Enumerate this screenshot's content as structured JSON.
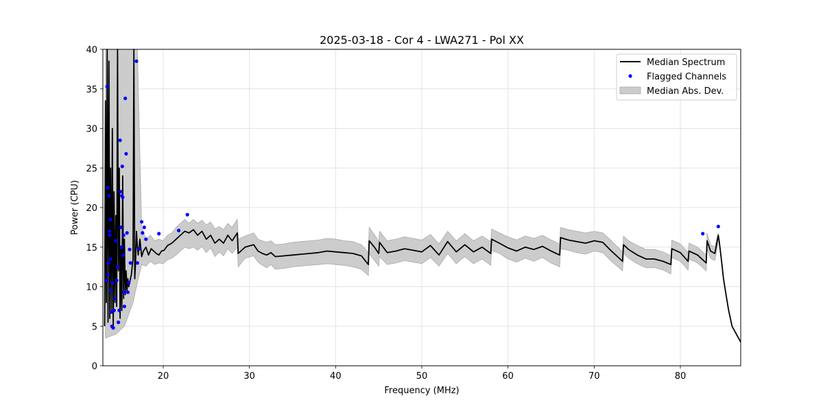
{
  "chart_data": {
    "type": "line",
    "title": "2025-03-18 - Cor 4 - LWA271 - Pol XX",
    "xlabel": "Frequency (MHz)",
    "ylabel": "Power (CPU)",
    "xlim": [
      13.0,
      87.0
    ],
    "ylim": [
      0,
      40
    ],
    "x_ticks": [
      20,
      30,
      40,
      50,
      60,
      70,
      80
    ],
    "y_ticks": [
      0,
      5,
      10,
      15,
      20,
      25,
      30,
      35,
      40
    ],
    "x_tick_labels": [
      "20",
      "30",
      "40",
      "50",
      "60",
      "70",
      "80"
    ],
    "y_tick_labels": [
      "0",
      "5",
      "10",
      "15",
      "20",
      "25",
      "30",
      "35",
      "40"
    ],
    "grid": true,
    "legend_position": "top-right",
    "legend": [
      {
        "label": "Median Spectrum",
        "kind": "line",
        "color": "#000000"
      },
      {
        "label": "Flagged Channels",
        "kind": "marker",
        "color": "#0000ff"
      },
      {
        "label": "Median Abs. Dev.",
        "kind": "band",
        "color": "#cccccc"
      }
    ],
    "series": [
      {
        "name": "Median Spectrum",
        "color": "#000000",
        "x": [
          13.2,
          13.3,
          13.4,
          13.5,
          13.6,
          13.7,
          13.8,
          13.9,
          14.0,
          14.1,
          14.2,
          14.3,
          14.4,
          14.5,
          14.6,
          14.7,
          14.8,
          14.9,
          15.0,
          15.1,
          15.2,
          15.3,
          15.4,
          15.5,
          15.6,
          15.7,
          15.8,
          15.9,
          16.0,
          16.1,
          16.2,
          16.3,
          16.4,
          16.5,
          16.6,
          16.7,
          16.8,
          16.9,
          17.0,
          17.1,
          17.3,
          17.5,
          17.7,
          18.0,
          18.3,
          18.6,
          18.9,
          19.2,
          19.5,
          19.8,
          20.1,
          20.5,
          21.0,
          21.5,
          22.0,
          22.5,
          23.0,
          23.5,
          24.0,
          24.5,
          25.0,
          25.5,
          26.0,
          26.5,
          27.0,
          27.5,
          28.0,
          28.6,
          28.7,
          29.5,
          30.5,
          31.0,
          31.5,
          32.0,
          32.5,
          33.0,
          34.0,
          35.0,
          36.0,
          37.0,
          38.0,
          39.0,
          40.0,
          41.0,
          42.0,
          43.0,
          43.8,
          43.9,
          44.5,
          45.0,
          45.1,
          46.0,
          47.0,
          48.0,
          49.0,
          50.0,
          51.0,
          52.0,
          53.0,
          54.0,
          55.0,
          56.0,
          57.0,
          58.0,
          58.1,
          59.0,
          60.0,
          61.0,
          62.0,
          63.0,
          64.0,
          65.0,
          66.0,
          66.1,
          67.0,
          68.0,
          69.0,
          70.0,
          71.0,
          72.0,
          73.3,
          73.4,
          74.0,
          75.0,
          76.0,
          77.0,
          78.0,
          78.9,
          79.0,
          80.0,
          80.9,
          81.0,
          82.0,
          82.5,
          83.0,
          83.1,
          83.5,
          84.0,
          84.4,
          84.5,
          84.8,
          85.0,
          85.3,
          85.6,
          86.0,
          86.5,
          87.0
        ],
        "y": [
          5.0,
          33.5,
          8.0,
          40.0,
          5.5,
          38.5,
          6.0,
          25.0,
          7.0,
          30.0,
          4.8,
          22.0,
          8.0,
          19.0,
          7.5,
          40.0,
          12.0,
          25.0,
          6.0,
          15.0,
          7.0,
          24.0,
          8.5,
          16.0,
          9.0,
          12.0,
          9.5,
          11.0,
          10.0,
          10.5,
          11.0,
          11.5,
          12.5,
          13.5,
          40.0,
          11.0,
          13.5,
          17.0,
          15.0,
          14.0,
          16.0,
          13.8,
          14.5,
          15.0,
          14.0,
          14.8,
          14.5,
          14.2,
          14.0,
          14.5,
          14.6,
          15.2,
          15.5,
          16.0,
          16.5,
          17.0,
          16.8,
          17.2,
          16.5,
          17.0,
          16.0,
          16.5,
          15.5,
          16.0,
          15.5,
          16.5,
          15.8,
          16.8,
          14.2,
          15.0,
          15.3,
          14.5,
          14.2,
          14.0,
          14.3,
          13.8,
          13.9,
          14.0,
          14.1,
          14.2,
          14.3,
          14.5,
          14.4,
          14.3,
          14.2,
          13.9,
          12.8,
          15.8,
          15.0,
          14.2,
          15.6,
          14.3,
          14.5,
          14.8,
          14.6,
          14.4,
          15.2,
          14.0,
          15.7,
          14.4,
          15.3,
          14.4,
          15.0,
          14.2,
          16.0,
          15.5,
          14.9,
          14.5,
          15.0,
          14.7,
          15.1,
          14.5,
          14.0,
          16.2,
          15.9,
          15.7,
          15.5,
          15.8,
          15.6,
          14.5,
          13.2,
          15.3,
          14.7,
          14.0,
          13.5,
          13.5,
          13.2,
          12.8,
          14.8,
          14.3,
          13.2,
          14.5,
          14.0,
          13.5,
          13.0,
          15.8,
          14.5,
          14.2,
          16.5,
          15.8,
          13.0,
          11.0,
          9.0,
          7.0,
          5.0,
          4.0,
          3.0
        ]
      },
      {
        "name": "Median Abs. Dev.",
        "color": "#cccccc",
        "x": [
          13.3,
          14.5,
          15.5,
          16.5,
          17.0,
          17.5,
          18.0,
          18.5,
          19.0,
          19.5,
          20.0,
          20.5,
          21.0,
          21.5,
          22.0,
          22.5,
          23.0,
          23.5,
          24.0,
          24.5,
          25.0,
          25.5,
          26.0,
          26.5,
          27.0,
          27.5,
          28.0,
          28.6,
          28.7,
          29.5,
          30.5,
          31.0,
          31.5,
          32.0,
          32.5,
          33.0,
          34.0,
          35.0,
          36.0,
          37.0,
          38.0,
          39.0,
          40.0,
          41.0,
          42.0,
          43.0,
          43.8,
          43.9,
          44.5,
          45.0,
          45.1,
          46.0,
          47.0,
          48.0,
          49.0,
          50.0,
          51.0,
          52.0,
          53.0,
          54.0,
          55.0,
          56.0,
          57.0,
          58.0,
          58.1,
          59.0,
          60.0,
          61.0,
          62.0,
          63.0,
          64.0,
          65.0,
          66.0,
          66.1,
          67.0,
          68.0,
          69.0,
          70.0,
          71.0,
          72.0,
          73.3,
          73.4,
          74.0,
          75.0,
          76.0,
          77.0,
          78.0,
          78.9,
          79.0,
          80.0,
          80.9,
          81.0,
          82.0,
          82.5,
          83.0,
          83.1,
          83.5,
          84.0,
          84.4
        ],
        "upper": [
          40.0,
          40.0,
          40.0,
          40.0,
          40.0,
          17.5,
          16.0,
          16.5,
          15.8,
          16.0,
          15.8,
          16.5,
          16.8,
          17.5,
          18.0,
          18.5,
          18.0,
          18.5,
          18.0,
          18.4,
          17.8,
          18.2,
          17.3,
          17.6,
          17.2,
          18.0,
          17.5,
          18.5,
          16.0,
          16.4,
          16.8,
          16.0,
          15.8,
          15.6,
          15.8,
          15.3,
          15.4,
          15.6,
          15.7,
          15.8,
          15.9,
          16.1,
          16.0,
          15.8,
          15.7,
          15.3,
          14.3,
          17.5,
          16.6,
          15.7,
          17.0,
          15.8,
          16.0,
          16.3,
          16.1,
          15.9,
          16.6,
          15.4,
          17.0,
          15.8,
          16.7,
          15.8,
          16.4,
          15.7,
          17.3,
          16.8,
          16.3,
          15.9,
          16.4,
          16.1,
          16.5,
          15.9,
          15.4,
          17.5,
          17.2,
          17.0,
          16.8,
          17.0,
          16.8,
          15.8,
          14.4,
          16.4,
          15.8,
          15.2,
          14.7,
          14.7,
          14.4,
          13.9,
          15.9,
          15.4,
          14.3,
          15.5,
          15.0,
          14.5,
          14.0,
          16.8,
          15.3,
          15.0,
          16.8
        ],
        "lower": [
          3.5,
          4.0,
          5.0,
          8.0,
          10.5,
          12.8,
          12.6,
          13.2,
          12.8,
          13.0,
          12.9,
          13.4,
          13.6,
          14.0,
          14.5,
          15.0,
          14.8,
          15.0,
          14.6,
          15.1,
          14.3,
          14.9,
          13.8,
          14.4,
          13.9,
          14.8,
          14.2,
          15.0,
          12.5,
          13.6,
          13.9,
          13.1,
          12.7,
          12.4,
          12.8,
          12.2,
          12.3,
          12.5,
          12.6,
          12.7,
          12.8,
          12.9,
          12.8,
          12.7,
          12.5,
          12.2,
          11.4,
          14.2,
          13.3,
          12.6,
          13.8,
          12.8,
          13.0,
          13.3,
          13.1,
          12.9,
          13.7,
          12.6,
          14.2,
          12.9,
          13.8,
          12.9,
          13.5,
          12.7,
          14.6,
          14.2,
          13.5,
          13.1,
          13.6,
          13.2,
          13.7,
          13.0,
          12.5,
          14.8,
          14.6,
          14.3,
          14.1,
          14.5,
          14.3,
          13.2,
          12.0,
          14.2,
          13.6,
          12.9,
          12.4,
          12.4,
          12.1,
          11.6,
          13.7,
          13.2,
          12.1,
          13.5,
          13.0,
          12.5,
          12.0,
          14.8,
          13.6,
          13.3,
          15.6
        ]
      },
      {
        "name": "Flagged Channels",
        "color": "#0000ff",
        "x": [
          13.4,
          13.5,
          13.55,
          13.6,
          13.65,
          13.7,
          13.75,
          13.8,
          13.85,
          13.9,
          13.95,
          14.0,
          14.05,
          14.1,
          14.2,
          14.3,
          14.4,
          14.5,
          14.6,
          14.7,
          14.8,
          14.9,
          15.0,
          15.05,
          15.1,
          15.15,
          15.2,
          15.25,
          15.3,
          15.35,
          15.4,
          15.45,
          15.5,
          15.6,
          15.7,
          15.8,
          15.9,
          16.0,
          16.1,
          16.2,
          16.9,
          17.0,
          17.2,
          17.5,
          17.6,
          17.8,
          18.0,
          19.5,
          21.8,
          22.8,
          82.6,
          84.4
        ],
        "y": [
          10.8,
          35.3,
          22.5,
          11.5,
          13.0,
          21.5,
          17.0,
          16.5,
          18.5,
          13.5,
          9.5,
          6.8,
          5.0,
          10.5,
          4.8,
          7.0,
          8.5,
          15.8,
          10.8,
          12.5,
          5.5,
          7.0,
          28.5,
          22.0,
          17.5,
          15.0,
          21.5,
          25.2,
          21.3,
          14.0,
          16.5,
          9.3,
          7.5,
          33.8,
          26.8,
          16.8,
          9.3,
          10.5,
          14.7,
          13.0,
          38.5,
          13.0,
          14.8,
          18.2,
          16.8,
          17.5,
          16.0,
          16.7,
          17.1,
          19.1,
          16.7,
          17.6
        ]
      }
    ]
  }
}
